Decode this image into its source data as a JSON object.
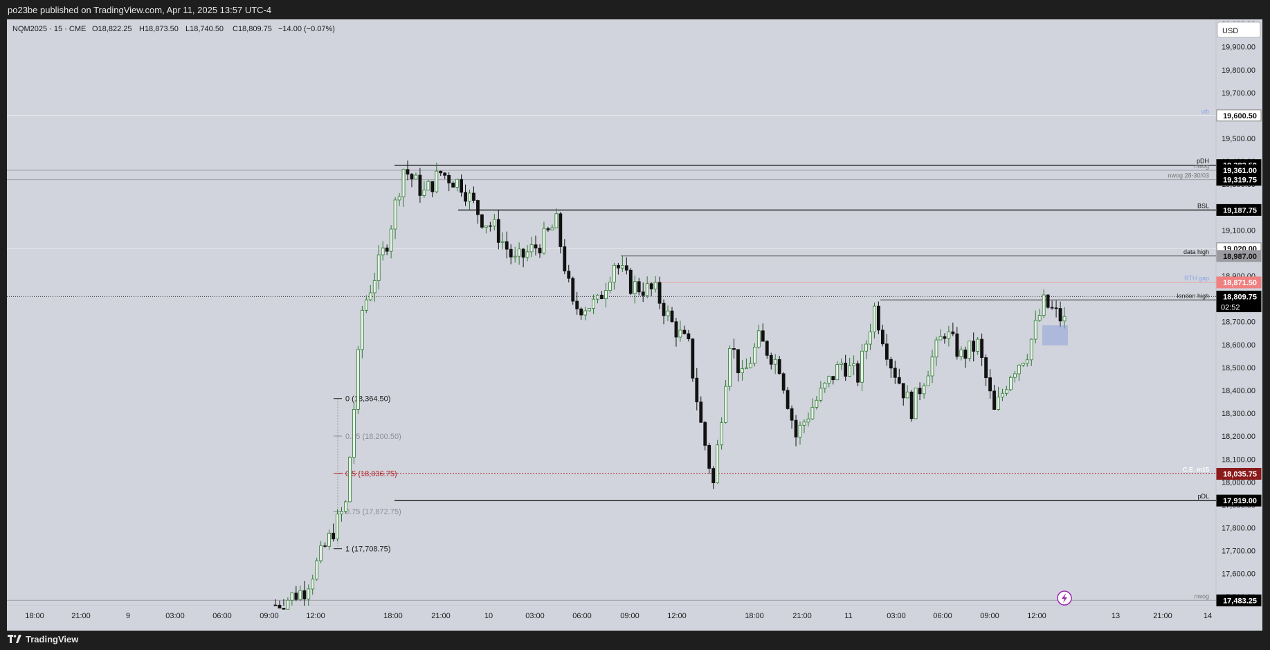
{
  "publisher_line": "po23be published on TradingView.com, Apr 11, 2025 13:57 UTC-4",
  "brand": "TradingView",
  "header": {
    "symbol": "NQM2025 · 15 · CME",
    "open": "O18,822.25",
    "high": "H18,873.50",
    "low": "L18,740.50",
    "close": "C18,809.75",
    "change": "−14.00 (−0.07%)"
  },
  "currency": "USD",
  "countdown": "02:52",
  "colors": {
    "chart_bg": "#d1d4dc",
    "up": "#2f7a32",
    "down": "#111111",
    "fib_red": "#b22222",
    "rth_pink": "#f08080",
    "vib_blue": "#8aa6e6"
  },
  "chart_data": {
    "type": "candlestick",
    "symbol": "NQM2025",
    "interval": "15",
    "ylim": [
      17460,
      20020
    ],
    "y_ticks": [
      "17,500.00",
      "17,600.00",
      "17,700.00",
      "17,800.00",
      "17,900.00",
      "18,000.00",
      "18,100.00",
      "18,200.00",
      "18,300.00",
      "18,400.00",
      "18,500.00",
      "18,600.00",
      "18,700.00",
      "18,800.00",
      "18,900.00",
      "19,000.00",
      "19,100.00",
      "19,200.00",
      "19,300.00",
      "19,400.00",
      "19,500.00",
      "19,600.00",
      "19,700.00",
      "19,800.00",
      "19,900.00",
      "20,000.00"
    ],
    "x_ticks": [
      "18:00",
      "21:00",
      "9",
      "03:00",
      "06:00",
      "09:00",
      "12:00",
      "18:00",
      "21:00",
      "10",
      "03:00",
      "06:00",
      "09:00",
      "12:00",
      "18:00",
      "21:00",
      "11",
      "03:00",
      "06:00",
      "09:00",
      "12:00",
      "13",
      "21:00",
      "14"
    ],
    "price_path": [
      [
        0,
        17463
      ],
      [
        7,
        17530
      ],
      [
        17,
        17900
      ],
      [
        21,
        18750
      ],
      [
        27,
        19050
      ],
      [
        31,
        19370
      ],
      [
        36,
        19260
      ],
      [
        40,
        19350
      ],
      [
        45,
        19300
      ],
      [
        50,
        19150
      ],
      [
        53,
        19110
      ],
      [
        58,
        18960
      ],
      [
        64,
        19040
      ],
      [
        68,
        19130
      ],
      [
        72,
        18760
      ],
      [
        78,
        18780
      ],
      [
        82,
        18960
      ],
      [
        86,
        18860
      ],
      [
        92,
        18830
      ],
      [
        96,
        18690
      ],
      [
        100,
        18590
      ],
      [
        103,
        18250
      ],
      [
        106,
        17990
      ],
      [
        110,
        18620
      ],
      [
        113,
        18450
      ],
      [
        117,
        18620
      ],
      [
        122,
        18510
      ],
      [
        126,
        18200
      ],
      [
        130,
        18330
      ],
      [
        137,
        18520
      ],
      [
        141,
        18460
      ],
      [
        145,
        18760
      ],
      [
        149,
        18520
      ],
      [
        154,
        18320
      ],
      [
        158,
        18500
      ],
      [
        162,
        18660
      ],
      [
        166,
        18550
      ],
      [
        170,
        18600
      ],
      [
        174,
        18300
      ],
      [
        178,
        18480
      ],
      [
        182,
        18570
      ],
      [
        186,
        18780
      ],
      [
        191,
        18700
      ]
    ],
    "levels": [
      {
        "label": "vib",
        "price": "19,600.50",
        "value": 19600.5
      },
      {
        "label": "pDH",
        "price": "19,383.50",
        "value": 19383.5
      },
      {
        "label": "nwog",
        "price": "19,361.00",
        "value": 19361
      },
      {
        "label": "nwog 28-30/03",
        "price": "19,319.75",
        "value": 19319.75
      },
      {
        "label": "BSL",
        "price": "19,187.75",
        "value": 19187.75
      },
      {
        "label": "",
        "price": "19,020.00",
        "value": 19020
      },
      {
        "label": "data high",
        "price": "18,987.00",
        "value": 18987
      },
      {
        "label": "RTH gap",
        "price": "18,871.50",
        "value": 18871.5
      },
      {
        "label": "london high",
        "price": "18,795.00",
        "value": 18795
      },
      {
        "label": "C.E. m15",
        "price": "18,035.75",
        "value": 18035.75
      },
      {
        "label": "pDL",
        "price": "17,919.00",
        "value": 17919
      },
      {
        "label": "nwog",
        "price": "17,483.25",
        "value": 17483.25
      }
    ],
    "last_price": {
      "price": "18,809.75",
      "value": 18809.75
    },
    "fib_levels": [
      {
        "label": "0 (18,364.50)",
        "value": 18364.5
      },
      {
        "label": "0.25 (18,200.50)",
        "value": 18200.5
      },
      {
        "label": "0.5 (18,036.75)",
        "value": 18036.75
      },
      {
        "label": "0.75 (17,872.75)",
        "value": 17872.75
      },
      {
        "label": "1 (17,708.75)",
        "value": 17708.75
      }
    ]
  }
}
